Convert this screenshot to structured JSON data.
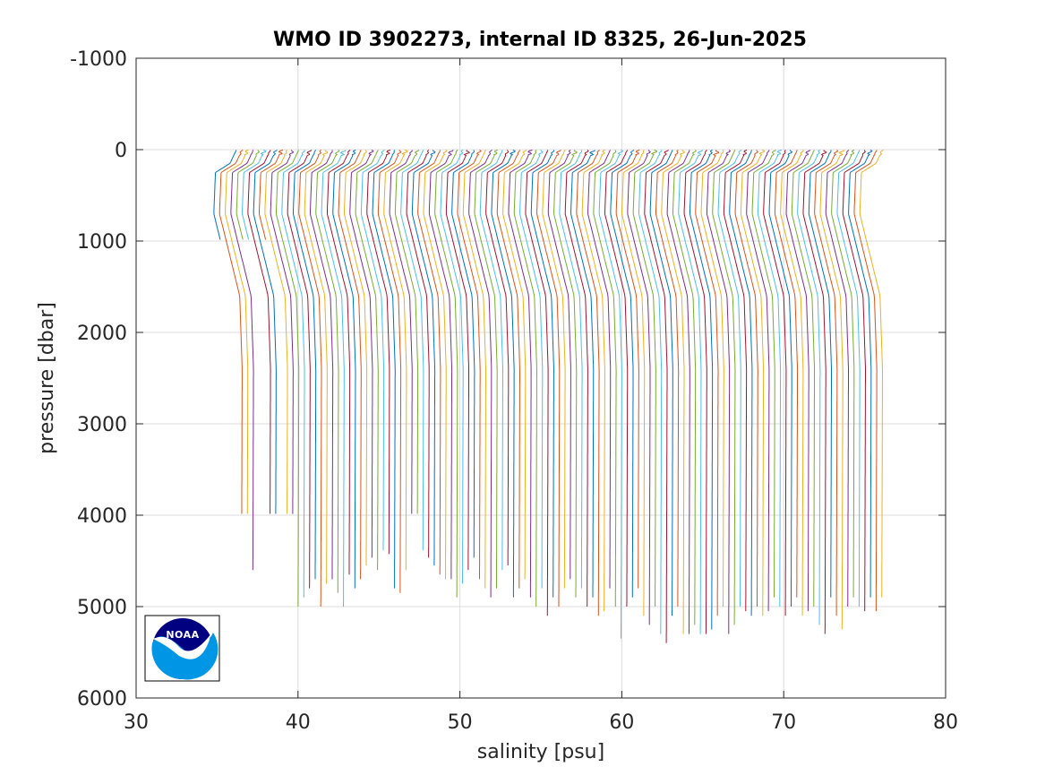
{
  "chart_data": {
    "type": "line",
    "title": "WMO ID 3902273, internal ID 8325, 26-Jun-2025",
    "xlabel": "salinity [psu]",
    "ylabel": "pressure [dbar]",
    "xlim": [
      30,
      80
    ],
    "ylim": [
      -1000,
      6000
    ],
    "y_reversed": true,
    "grid": true,
    "xticks": [
      30,
      40,
      50,
      60,
      70,
      80
    ],
    "yticks": [
      -1000,
      0,
      1000,
      2000,
      3000,
      4000,
      5000,
      6000
    ],
    "series_colors": [
      "#0072BD",
      "#D95319",
      "#EDB120",
      "#7E2F8E",
      "#77AC30",
      "#4DBEEE",
      "#A2142F"
    ],
    "profile_count": 115,
    "profile_offset_step_psu": 0.35,
    "profile_base_salinity": 34.8,
    "profile_max_pressure": [
      1000,
      4000,
      4000,
      4600,
      1000,
      1000,
      4000,
      4000,
      1000,
      4000,
      4000,
      5000,
      4900,
      4800,
      4700,
      5000,
      4750,
      4700,
      4850,
      5000,
      4650,
      4800,
      4700,
      4550,
      4500,
      4600,
      4400,
      4450,
      4800,
      4850,
      4600,
      4000,
      4000,
      4400,
      4500,
      4550,
      4650,
      4700,
      4700,
      4900,
      4750,
      4600,
      4500,
      4700,
      4800,
      4900,
      4800,
      4600,
      4550,
      4900,
      4800,
      4700,
      4900,
      5000,
      4800,
      5100,
      4900,
      5000,
      4800,
      4700,
      4900,
      4800,
      5000,
      4900,
      5100,
      5050,
      4800,
      5000,
      5350,
      5000,
      4900,
      4800,
      5100,
      5200,
      5000,
      5300,
      5400,
      5100,
      5000,
      5300,
      5300,
      5200,
      5300,
      5300,
      5250,
      5100,
      5000,
      5300,
      5200,
      5000,
      5050,
      5100,
      5000,
      5100,
      5050,
      4900,
      5000,
      5100,
      5000,
      4900,
      5100,
      5050,
      5000,
      5200,
      5300,
      4900,
      5100,
      5250,
      5000,
      4900,
      5000,
      5050,
      4900,
      5050,
      4900
    ]
  },
  "logo": {
    "label": "NOAA",
    "colors": {
      "top": "#000080",
      "bottom": "#0096E6",
      "wave": "#ffffff"
    }
  }
}
